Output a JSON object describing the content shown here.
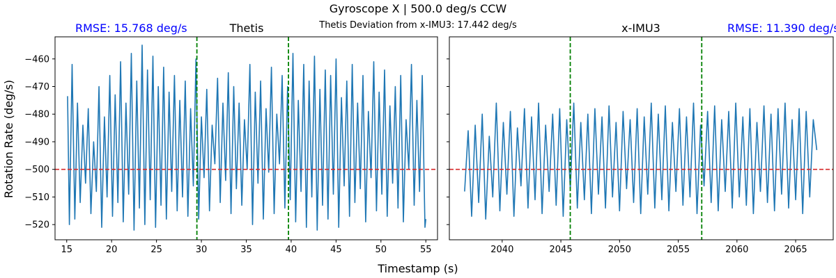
{
  "figure": {
    "title": "Gyroscope X | 500.0 deg/s CCW",
    "subtitle": "Thetis Deviation from x-IMU3: 17.442 deg/s",
    "xlabel": "Timestamp (s)",
    "ylabel": "Rotation Rate (deg/s)"
  },
  "colors": {
    "series": "#1f77b4",
    "reference_line": "#d62728",
    "window_lines": "#008000",
    "rmse_text": "#0000ff"
  },
  "chart_data": [
    {
      "type": "line",
      "title": "Thetis",
      "rmse_label": "RMSE: 15.768 deg/s",
      "xlim": [
        13.7,
        56.3
      ],
      "ylim": [
        -525.5,
        -452
      ],
      "xticks": [
        15,
        20,
        25,
        30,
        35,
        40,
        45,
        50,
        55
      ],
      "yticks": [
        -520,
        -510,
        -500,
        -490,
        -480,
        -470,
        -460
      ],
      "reference_y": -500,
      "window_x": [
        29.5,
        39.7
      ],
      "series": [
        {
          "x": [
            15.1,
            15.3,
            15.6,
            15.9,
            16.2,
            16.5,
            16.8,
            17.1,
            17.4,
            17.7,
            18.0,
            18.3,
            18.6,
            18.9,
            19.2,
            19.5,
            19.8,
            20.1,
            20.4,
            20.7,
            21.0,
            21.3,
            21.6,
            21.9,
            22.2,
            22.5,
            22.8,
            23.1,
            23.4,
            23.7,
            24.0,
            24.3,
            24.6,
            24.9,
            25.2,
            25.5,
            25.8,
            26.1,
            26.4,
            26.7,
            27.0,
            27.3,
            27.6,
            27.9,
            28.2,
            28.5,
            28.8,
            29.1,
            29.4,
            29.7,
            30.0,
            30.3,
            30.6,
            30.9,
            31.2,
            31.5,
            31.8,
            32.1,
            32.4,
            32.7,
            33.0,
            33.3,
            33.6,
            33.9,
            34.2,
            34.5,
            34.8,
            35.1,
            35.4,
            35.7,
            36.0,
            36.3,
            36.6,
            36.9,
            37.2,
            37.5,
            37.8,
            38.1,
            38.4,
            38.7,
            39.0,
            39.3,
            39.6,
            39.9,
            40.2,
            40.5,
            40.8,
            41.1,
            41.4,
            41.7,
            42.0,
            42.3,
            42.6,
            42.9,
            43.2,
            43.5,
            43.8,
            44.1,
            44.4,
            44.7,
            45.0,
            45.3,
            45.6,
            45.9,
            46.2,
            46.5,
            46.8,
            47.1,
            47.4,
            47.7,
            48.0,
            48.3,
            48.6,
            48.9,
            49.2,
            49.5,
            49.8,
            50.1,
            50.4,
            50.7,
            51.0,
            51.3,
            51.6,
            51.9,
            52.2,
            52.5,
            52.8,
            53.1,
            53.4,
            53.7,
            54.0,
            54.3,
            54.6,
            54.9,
            55.0
          ],
          "y": [
            -473.5,
            -520,
            -462,
            -518,
            -476,
            -512,
            -484,
            -505,
            -478,
            -516,
            -490,
            -508,
            -470,
            -521,
            -481,
            -510,
            -466,
            -517,
            -473,
            -512,
            -461,
            -519,
            -476,
            -509,
            -458,
            -522,
            -468,
            -514,
            -455,
            -520,
            -464,
            -511,
            -459,
            -521,
            -470,
            -513,
            -463,
            -518,
            -472,
            -508,
            -466,
            -515,
            -475,
            -510,
            -468,
            -517,
            -478,
            -506,
            -460,
            -518,
            -481,
            -503,
            -471,
            -515,
            -484,
            -498,
            -467,
            -512,
            -476,
            -504,
            -465,
            -516,
            -470,
            -507,
            -476,
            -513,
            -482,
            -500,
            -462,
            -520,
            -472,
            -505,
            -468,
            -518,
            -478,
            -501,
            -463,
            -516,
            -480,
            -498,
            -466,
            -514,
            -470,
            -511,
            -458,
            -519,
            -475,
            -508,
            -462,
            -521,
            -468,
            -510,
            -459,
            -522,
            -471,
            -513,
            -464,
            -518,
            -466,
            -509,
            -460,
            -521,
            -474,
            -506,
            -468,
            -517,
            -462,
            -512,
            -476,
            -507,
            -466,
            -519,
            -479,
            -503,
            -461,
            -515,
            -472,
            -509,
            -464,
            -517,
            -477,
            -505,
            -470,
            -514,
            -466,
            -519,
            -482,
            -500,
            -462,
            -513,
            -475,
            -508,
            -466,
            -521,
            -518
          ]
        }
      ]
    },
    {
      "type": "line",
      "title": "x-IMU3",
      "rmse_label": "RMSE: 11.390 deg/s",
      "xlim": [
        2035.5,
        2068.2
      ],
      "ylim": [
        -525.5,
        -452
      ],
      "xticks": [
        2040,
        2045,
        2050,
        2055,
        2060,
        2065
      ],
      "yticks": [
        -520,
        -510,
        -500,
        -490,
        -480,
        -470,
        -460
      ],
      "reference_y": -500,
      "window_x": [
        2045.8,
        2057.0
      ],
      "series": [
        {
          "x": [
            2036.8,
            2037.1,
            2037.4,
            2037.7,
            2038.0,
            2038.3,
            2038.6,
            2038.9,
            2039.2,
            2039.5,
            2039.8,
            2040.1,
            2040.4,
            2040.7,
            2041.0,
            2041.3,
            2041.6,
            2041.9,
            2042.2,
            2042.5,
            2042.8,
            2043.1,
            2043.4,
            2043.7,
            2044.0,
            2044.3,
            2044.6,
            2044.9,
            2045.2,
            2045.5,
            2045.8,
            2046.1,
            2046.4,
            2046.7,
            2047.0,
            2047.3,
            2047.6,
            2047.9,
            2048.2,
            2048.5,
            2048.8,
            2049.1,
            2049.4,
            2049.7,
            2050.0,
            2050.3,
            2050.6,
            2050.9,
            2051.2,
            2051.5,
            2051.8,
            2052.1,
            2052.4,
            2052.7,
            2053.0,
            2053.3,
            2053.6,
            2053.9,
            2054.2,
            2054.5,
            2054.8,
            2055.1,
            2055.4,
            2055.7,
            2056.0,
            2056.3,
            2056.6,
            2056.9,
            2057.2,
            2057.5,
            2057.8,
            2058.1,
            2058.4,
            2058.7,
            2059.0,
            2059.3,
            2059.6,
            2059.9,
            2060.2,
            2060.5,
            2060.8,
            2061.1,
            2061.4,
            2061.7,
            2062.0,
            2062.3,
            2062.6,
            2062.9,
            2063.2,
            2063.5,
            2063.8,
            2064.1,
            2064.4,
            2064.7,
            2065.0,
            2065.3,
            2065.6,
            2065.9,
            2066.2,
            2066.5,
            2066.8
          ],
          "y": [
            -508,
            -486,
            -517,
            -484,
            -512,
            -480,
            -518,
            -488,
            -510,
            -476,
            -515,
            -483,
            -509,
            -479,
            -517,
            -485,
            -506,
            -478,
            -514,
            -481,
            -511,
            -476,
            -516,
            -484,
            -508,
            -480,
            -513,
            -478,
            -517,
            -482,
            -507,
            -476,
            -514,
            -483,
            -511,
            -480,
            -516,
            -478,
            -509,
            -481,
            -514,
            -477,
            -510,
            -483,
            -515,
            -479,
            -507,
            -482,
            -512,
            -478,
            -516,
            -481,
            -509,
            -476,
            -514,
            -480,
            -511,
            -477,
            -515,
            -483,
            -508,
            -478,
            -513,
            -481,
            -510,
            -476,
            -516,
            -484,
            -506,
            -479,
            -512,
            -477,
            -515,
            -482,
            -508,
            -479,
            -514,
            -476,
            -510,
            -481,
            -513,
            -478,
            -516,
            -483,
            -508,
            -477,
            -512,
            -480,
            -515,
            -478,
            -509,
            -476,
            -514,
            -482,
            -511,
            -478,
            -516,
            -479,
            -510,
            -482,
            -493
          ]
        }
      ]
    }
  ]
}
